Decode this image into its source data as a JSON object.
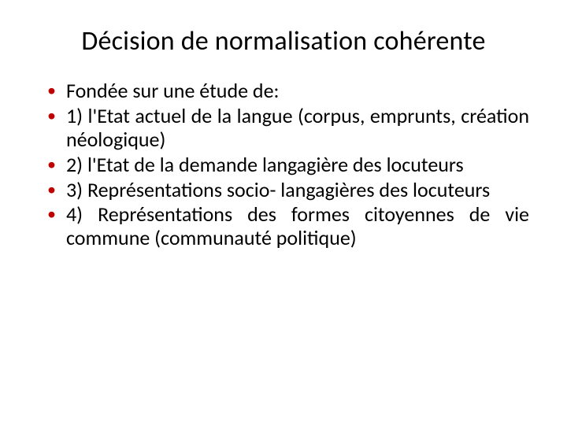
{
  "slide": {
    "title": "Décision de normalisation cohérente",
    "title_color": "#000000",
    "bullet_marker_color": "#c00000",
    "background_color": "#ffffff",
    "body_text_color": "#000000",
    "title_fontsize_pt": 34,
    "body_fontsize_pt": 26,
    "bullets": [
      "Fondée sur une étude de:",
      "1)   l'Etat actuel de la langue (corpus, emprunts, création néologique)",
      "2) l'Etat de la demande langagière des locuteurs",
      "3) Représentations socio- langagières des locuteurs",
      "4) Représentations  des formes citoyennes de vie commune (communauté politique)"
    ]
  }
}
